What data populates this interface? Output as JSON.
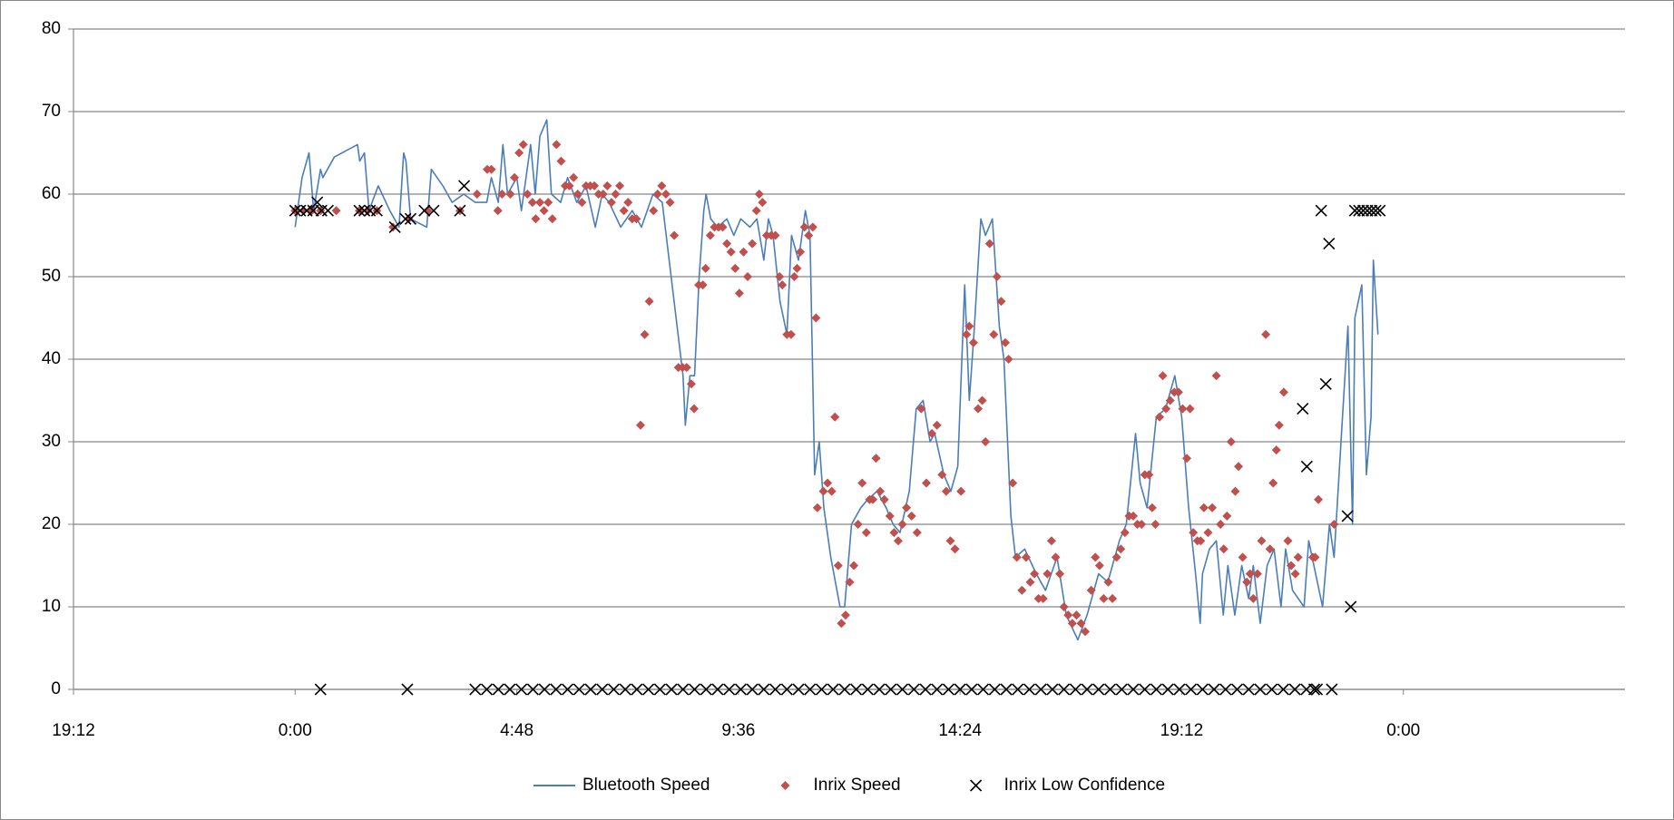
{
  "chart_data": {
    "type": "scatter",
    "xlim": [
      -4.8,
      28.8
    ],
    "xticks": [
      {
        "value": -4.8,
        "label": "19:12"
      },
      {
        "value": 0,
        "label": "0:00"
      },
      {
        "value": 4.8,
        "label": "4:48"
      },
      {
        "value": 9.6,
        "label": "9:36"
      },
      {
        "value": 14.4,
        "label": "14:24"
      },
      {
        "value": 19.2,
        "label": "19:12"
      },
      {
        "value": 24,
        "label": "0:00"
      }
    ],
    "ylim": [
      0,
      80
    ],
    "yticks": [
      0,
      10,
      20,
      30,
      40,
      50,
      60,
      70,
      80
    ],
    "grid": true,
    "legend": "bottom",
    "series": [
      {
        "name": "Bluetooth Speed",
        "style": "line",
        "color": "#4a7ebb",
        "x": [
          0.0,
          0.15,
          0.3,
          0.4,
          0.55,
          0.6,
          0.85,
          1.35,
          1.4,
          1.5,
          1.6,
          1.8,
          2.05,
          2.25,
          2.35,
          2.4,
          2.5,
          2.85,
          2.95,
          3.2,
          3.4,
          3.65,
          3.9,
          4.15,
          4.25,
          4.4,
          4.5,
          4.6,
          4.8,
          4.9,
          5.1,
          5.2,
          5.3,
          5.45,
          5.55,
          5.75,
          5.9,
          6.1,
          6.3,
          6.5,
          6.65,
          6.8,
          7.05,
          7.3,
          7.5,
          7.75,
          7.95,
          8.1,
          8.25,
          8.4,
          8.45,
          8.55,
          8.65,
          8.75,
          8.85,
          8.9,
          9.0,
          9.15,
          9.35,
          9.5,
          9.65,
          9.85,
          10.0,
          10.15,
          10.25,
          10.35,
          10.5,
          10.65,
          10.75,
          10.9,
          11.05,
          11.15,
          11.25,
          11.35,
          11.45,
          11.6,
          11.8,
          11.9,
          12.05,
          12.25,
          12.4,
          12.6,
          12.8,
          12.95,
          13.1,
          13.3,
          13.45,
          13.6,
          13.75,
          13.85,
          14.05,
          14.2,
          14.35,
          14.5,
          14.6,
          14.7,
          14.85,
          14.95,
          15.1,
          15.25,
          15.35,
          15.5,
          15.6,
          15.8,
          16.05,
          16.25,
          16.5,
          16.7,
          16.95,
          17.15,
          17.4,
          17.6,
          17.85,
          18.0,
          18.2,
          18.3,
          18.45,
          18.65,
          18.85,
          19.05,
          19.2,
          19.35,
          19.5,
          19.6,
          19.65,
          19.8,
          19.95,
          20.1,
          20.2,
          20.35,
          20.5,
          20.65,
          20.75,
          20.9,
          21.05,
          21.2,
          21.35,
          21.45,
          21.6,
          21.85,
          21.95,
          22.1,
          22.25,
          22.4,
          22.5,
          22.65,
          22.8,
          22.9,
          22.95,
          23.1,
          23.2,
          23.3,
          23.35,
          23.45
        ],
        "values": [
          56,
          62,
          65,
          58,
          63,
          62,
          64.5,
          66,
          64,
          65,
          58,
          61,
          58,
          56,
          65,
          64,
          57,
          56,
          63,
          61,
          59,
          60,
          59,
          59,
          62,
          59,
          66,
          60,
          62,
          58,
          66,
          60,
          67,
          69,
          60,
          59,
          62,
          59,
          61,
          56,
          60,
          59,
          56,
          58,
          56,
          60,
          59,
          52,
          45,
          38,
          32,
          38,
          38,
          50,
          58,
          60,
          57,
          56,
          57,
          55,
          57,
          56,
          57,
          52,
          57,
          55,
          47,
          43,
          55,
          52,
          58,
          55,
          26,
          30,
          22,
          16,
          10,
          10,
          20,
          22,
          23,
          24,
          22,
          20,
          19,
          24,
          34,
          35,
          30,
          31,
          26,
          24,
          27,
          49,
          35,
          43,
          57,
          55,
          57,
          44,
          40,
          21,
          16,
          17,
          14,
          12,
          16,
          9,
          6,
          9,
          14,
          13,
          18,
          20,
          31,
          25,
          22,
          33,
          34,
          38,
          33,
          22,
          14,
          8,
          14,
          17,
          18,
          9,
          15,
          9,
          15,
          11,
          15,
          8,
          15,
          17,
          10,
          17,
          12,
          10,
          18,
          14,
          10,
          20,
          16,
          30,
          44,
          20,
          45,
          49,
          26,
          33,
          52,
          43
        ]
      },
      {
        "name": "Inrix Speed",
        "style": "diamond",
        "color": "#c0504d",
        "x": [
          0,
          0.18,
          0.36,
          0.55,
          0.89,
          1.39,
          1.57,
          1.77,
          2.12,
          2.46,
          2.87,
          3.57,
          3.94,
          4.16,
          4.25,
          4.39,
          4.48,
          4.66,
          4.75,
          4.85,
          4.94,
          5.03,
          5.14,
          5.21,
          5.3,
          5.39,
          5.48,
          5.57,
          5.66,
          5.76,
          5.85,
          5.94,
          6.03,
          6.12,
          6.21,
          6.3,
          6.39,
          6.48,
          6.57,
          6.67,
          6.76,
          6.85,
          6.94,
          7.03,
          7.12,
          7.21,
          7.3,
          7.39,
          7.48,
          7.57,
          7.67,
          7.76,
          7.85,
          7.94,
          8.03,
          8.12,
          8.21,
          8.3,
          8.39,
          8.48,
          8.58,
          8.64,
          8.74,
          8.83,
          8.89,
          8.99,
          9.08,
          9.17,
          9.26,
          9.35,
          9.44,
          9.53,
          9.62,
          9.71,
          9.8,
          9.9,
          9.99,
          10.05,
          10.12,
          10.21,
          10.31,
          10.4,
          10.49,
          10.55,
          10.65,
          10.74,
          10.81,
          10.87,
          10.94,
          11.03,
          11.12,
          11.21,
          11.28,
          11.31,
          11.44,
          11.53,
          11.62,
          11.69,
          11.76,
          11.83,
          11.92,
          12.01,
          12.1,
          12.19,
          12.28,
          12.37,
          12.44,
          12.51,
          12.58,
          12.67,
          12.76,
          12.88,
          12.97,
          13.06,
          13.15,
          13.24,
          13.35,
          13.47,
          13.56,
          13.67,
          13.79,
          13.9,
          14.01,
          14.1,
          14.19,
          14.29,
          14.42,
          14.54,
          14.6,
          14.69,
          14.79,
          14.88,
          14.95,
          15.04,
          15.13,
          15.2,
          15.29,
          15.38,
          15.45,
          15.54,
          15.63,
          15.74,
          15.83,
          15.92,
          16.01,
          16.1,
          16.2,
          16.29,
          16.38,
          16.47,
          16.56,
          16.65,
          16.74,
          16.83,
          16.92,
          17.02,
          17.11,
          17.24,
          17.33,
          17.42,
          17.51,
          17.61,
          17.7,
          17.79,
          17.88,
          17.97,
          18.06,
          18.15,
          18.24,
          18.33,
          18.4,
          18.49,
          18.56,
          18.63,
          18.72,
          18.79,
          18.86,
          18.95,
          19.04,
          19.13,
          19.22,
          19.31,
          19.38,
          19.45,
          19.54,
          19.61,
          19.68,
          19.77,
          19.86,
          19.95,
          20.04,
          20.11,
          20.18,
          20.27,
          20.36,
          20.43,
          20.52,
          20.61,
          20.68,
          20.75,
          20.84,
          20.93,
          21.02,
          21.11,
          21.18,
          21.25,
          21.31,
          21.41,
          21.5,
          21.57,
          21.66,
          21.72,
          22.04,
          22.09,
          22.16,
          22.5
        ],
        "values": [
          58,
          58,
          58,
          58,
          58,
          58,
          58,
          58,
          56,
          57,
          58,
          58,
          60,
          63,
          63,
          58,
          60,
          60,
          62,
          65,
          66,
          60,
          59,
          57,
          59,
          58,
          59,
          57,
          66,
          64,
          61,
          61,
          62,
          60,
          59,
          61,
          61,
          61,
          60,
          60,
          61,
          59,
          60,
          61,
          58,
          59,
          57,
          57,
          32,
          43,
          47,
          58,
          60,
          61,
          60,
          59,
          55,
          39,
          39,
          39,
          37,
          34,
          49,
          49,
          51,
          55,
          56,
          56,
          56,
          54,
          53,
          51,
          48,
          53,
          50,
          54,
          58,
          60,
          59,
          55,
          55,
          55,
          50,
          49,
          43,
          43,
          50,
          51,
          53,
          56,
          55,
          56,
          45,
          22,
          24,
          25,
          24,
          33,
          15,
          8,
          9,
          13,
          15,
          20,
          25,
          19,
          23,
          23,
          28,
          24,
          23,
          21,
          19,
          18,
          20,
          22,
          21,
          19,
          34,
          25,
          31,
          32,
          26,
          24,
          18,
          17,
          24,
          43,
          44,
          42,
          34,
          35,
          30,
          54,
          43,
          50,
          47,
          42,
          40,
          25,
          16,
          12,
          16,
          13,
          14,
          11,
          11,
          14,
          18,
          16,
          14,
          10,
          9,
          8,
          9,
          8,
          7,
          12,
          16,
          15,
          11,
          13,
          11,
          16,
          17,
          19,
          21,
          21,
          20,
          20,
          26,
          26,
          22,
          20,
          33,
          38,
          34,
          35,
          36,
          36,
          34,
          28,
          34,
          19,
          18,
          18,
          22,
          19,
          22,
          38,
          20,
          17,
          21,
          30,
          24,
          27,
          16,
          13,
          14,
          11,
          14,
          18,
          43,
          17,
          25,
          29,
          32,
          36,
          18,
          15,
          14,
          16,
          16,
          16,
          23,
          20
        ]
      },
      {
        "name": "Inrix Low Confidence",
        "style": "cross",
        "color": "#000000",
        "x": [
          0,
          0.11,
          0.25,
          0.39,
          0.48,
          0.55,
          0.57,
          0.71,
          1.39,
          1.5,
          1.62,
          1.77,
          2.16,
          2.39,
          2.43,
          2.5,
          2.8,
          3.0,
          3.57,
          3.66,
          3.9,
          4.15,
          4.4,
          4.65,
          4.9,
          5.15,
          5.4,
          5.65,
          5.9,
          6.15,
          6.4,
          6.65,
          6.9,
          7.15,
          7.4,
          7.65,
          7.9,
          8.15,
          8.4,
          8.65,
          8.9,
          9.15,
          9.4,
          9.65,
          9.9,
          10.15,
          10.4,
          10.65,
          10.9,
          11.15,
          11.4,
          11.65,
          11.9,
          12.15,
          12.4,
          12.65,
          12.9,
          13.15,
          13.4,
          13.65,
          13.9,
          14.15,
          14.4,
          14.65,
          14.9,
          15.15,
          15.4,
          15.65,
          15.9,
          16.15,
          16.4,
          16.65,
          16.9,
          17.15,
          17.4,
          17.65,
          17.9,
          18.15,
          18.4,
          18.65,
          18.9,
          19.15,
          19.4,
          19.65,
          19.9,
          20.15,
          20.4,
          20.65,
          20.9,
          21.15,
          21.4,
          21.65,
          21.82,
          21.9,
          21.91,
          22.07,
          22.13,
          22.22,
          22.32,
          22.39,
          22.45,
          22.79,
          22.86,
          22.95,
          23.04,
          23.13,
          23.22,
          23.31,
          23.4,
          23.49
        ],
        "values": [
          58,
          58,
          58,
          58,
          59,
          0,
          58,
          58,
          58,
          58,
          58,
          58,
          56,
          57,
          0,
          57,
          58,
          58,
          58,
          61,
          0,
          0,
          0,
          0,
          0,
          0,
          0,
          0,
          0,
          0,
          0,
          0,
          0,
          0,
          0,
          0,
          0,
          0,
          0,
          0,
          0,
          0,
          0,
          0,
          0,
          0,
          0,
          0,
          0,
          0,
          0,
          0,
          0,
          0,
          0,
          0,
          0,
          0,
          0,
          0,
          0,
          0,
          0,
          0,
          0,
          0,
          0,
          0,
          0,
          0,
          0,
          0,
          0,
          0,
          0,
          0,
          0,
          0,
          0,
          0,
          0,
          0,
          0,
          0,
          0,
          0,
          0,
          0,
          0,
          0,
          0,
          0,
          34,
          0,
          27,
          0,
          0,
          58,
          37,
          54,
          0,
          21,
          10,
          58,
          58,
          58,
          58,
          58,
          58,
          58
        ]
      }
    ]
  }
}
